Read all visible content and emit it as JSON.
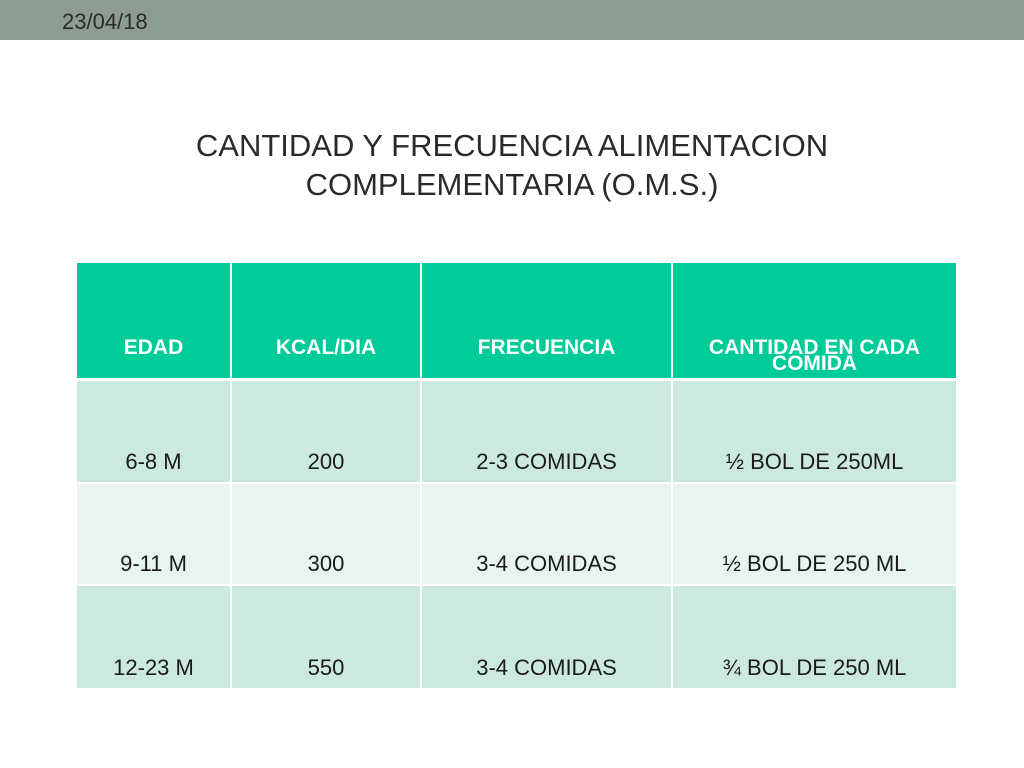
{
  "slide": {
    "date": "23/04/18",
    "title_line1": "CANTIDAD Y FRECUENCIA ALIMENTACION",
    "title_line2": "COMPLEMENTARIA (O.M.S.)"
  },
  "table": {
    "headers": [
      "EDAD",
      "KCAL/DIA",
      "FRECUENCIA",
      "CANTIDAD EN CADA COMIDA"
    ],
    "header_last_line1": "CANTIDAD EN CADA",
    "header_last_line2": "COMIDA",
    "rows": [
      [
        "6-8 M",
        "200",
        "2-3 COMIDAS",
        "½ BOL DE 250ML"
      ],
      [
        "9-11 M",
        "300",
        "3-4 COMIDAS",
        "½ BOL DE 250 ML"
      ],
      [
        "12-23 M",
        "550",
        "3-4 COMIDAS",
        "¾ BOL DE 250 ML"
      ]
    ]
  },
  "colors": {
    "top_bar": "#8d9c92",
    "header_bg": "#00cc99",
    "row_dark": "#cce9df",
    "row_light": "#e7f4ef"
  }
}
